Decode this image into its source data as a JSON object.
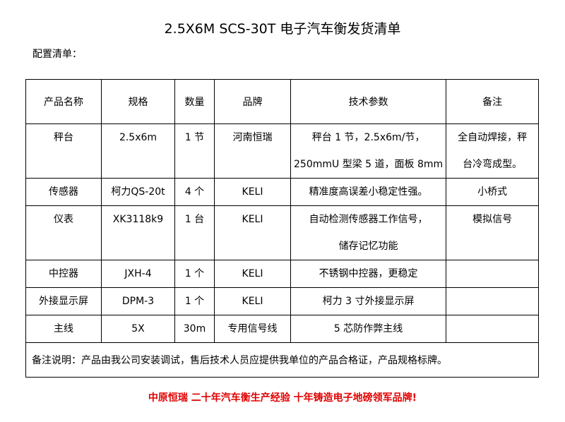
{
  "title": "2.5X6M SCS-30T 电子汽车衡发货清单",
  "subtitle": "配置清单：",
  "headers": [
    "产品名称",
    "规格",
    "数量",
    "品牌",
    "技术参数",
    "备注"
  ],
  "rows": [
    {
      "name": "秤台",
      "spec": "2.5x6m",
      "qty": "1 节",
      "brand": "河南恒瑞",
      "tech": [
        "秤台 1 节，2.5x6m/节，",
        "250mmU 型梁 5 道，面板 8mm"
      ],
      "remark": [
        "全自动焊接，秤",
        "台冷弯成型。"
      ]
    },
    {
      "name": "传感器",
      "spec": "柯力QS-20t",
      "qty": "4 个",
      "brand": "KELI",
      "tech": [
        "精准度高误差小稳定性强。"
      ],
      "remark": [
        "小桥式"
      ]
    },
    {
      "name": "仪表",
      "spec": "XK3118k9",
      "qty": "1 台",
      "brand": "KELI",
      "tech": [
        "自动检测传感器工作信号，",
        "储存记忆功能"
      ],
      "remark": [
        "模拟信号"
      ]
    },
    {
      "name": "中控器",
      "spec": "JXH-4",
      "qty": "1 个",
      "brand": "KELI",
      "tech": [
        "不锈钢中控器，更稳定"
      ],
      "remark": [
        ""
      ]
    },
    {
      "name": "外接显示屏",
      "spec": "DPM-3",
      "qty": "1 个",
      "brand": "KELI",
      "tech": [
        "柯力 3 寸外接显示屏"
      ],
      "remark": [
        ""
      ]
    },
    {
      "name": "主线",
      "spec": "5X",
      "qty": "30m",
      "brand": "专用信号线",
      "tech": [
        "5 芯防作弊主线"
      ],
      "remark": [
        ""
      ]
    }
  ],
  "note": "备注说明：产品由我公司安装调试，售后技术人员应提供我单位的产品合格证，产品规格标牌。",
  "footer": "中原恒瑞 二十年汽车衡生产经验 十年铸造电子地磅领军品牌!",
  "colors": {
    "footer": "#e00000"
  }
}
